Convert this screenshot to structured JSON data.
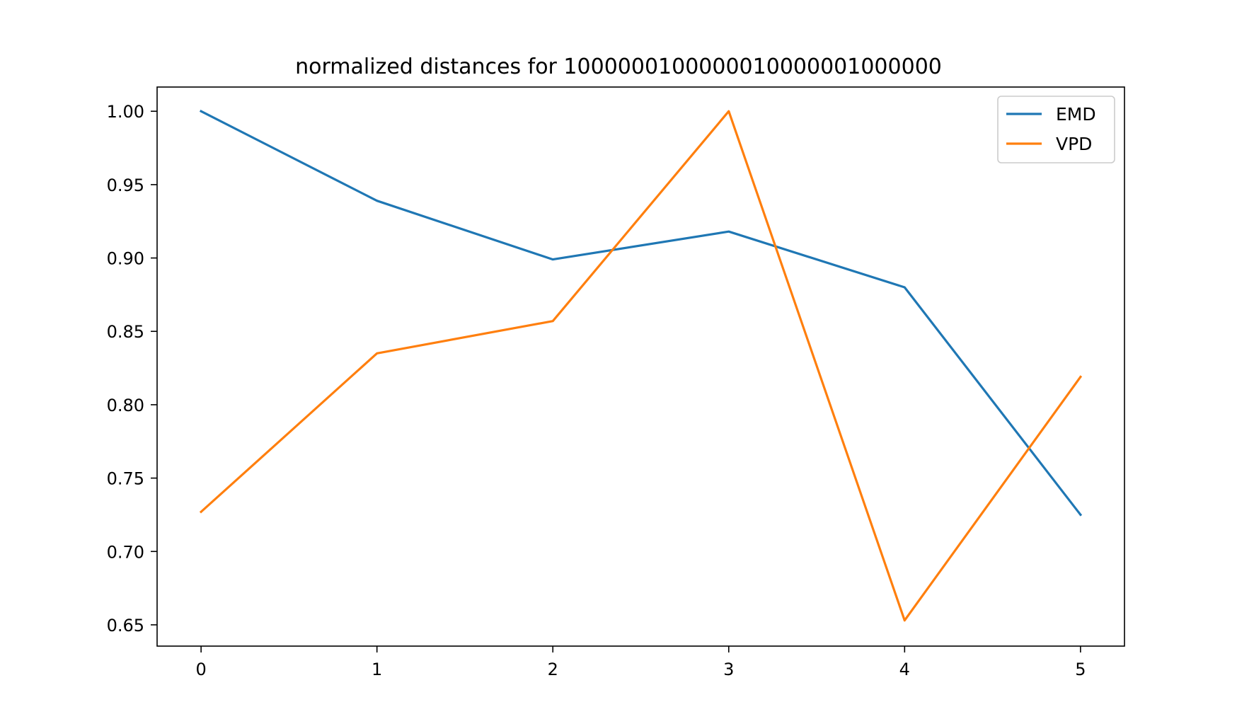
{
  "chart_data": {
    "type": "line",
    "title": "normalized distances for 1000000100000010000001000000",
    "xlabel": "",
    "ylabel": "",
    "x": [
      0,
      1,
      2,
      3,
      4,
      5
    ],
    "xlim": [
      -0.25,
      5.25
    ],
    "ylim": [
      0.6355,
      1.0165
    ],
    "xticks": [
      0,
      1,
      2,
      3,
      4,
      5
    ],
    "yticks": [
      1.0,
      0.95,
      0.9,
      0.85,
      0.8,
      0.75,
      0.7,
      0.65
    ],
    "ytick_labels": [
      "1.00",
      "0.95",
      "0.90",
      "0.85",
      "0.80",
      "0.75",
      "0.70",
      "0.65"
    ],
    "grid": false,
    "legend_position": "top-right",
    "series": [
      {
        "name": "EMD",
        "color": "#1f77b4",
        "values": [
          1.0,
          0.939,
          0.899,
          0.918,
          0.88,
          0.725
        ]
      },
      {
        "name": "VPD",
        "color": "#ff7f0e",
        "values": [
          0.727,
          0.835,
          0.857,
          1.0,
          0.653,
          0.819
        ]
      }
    ]
  }
}
